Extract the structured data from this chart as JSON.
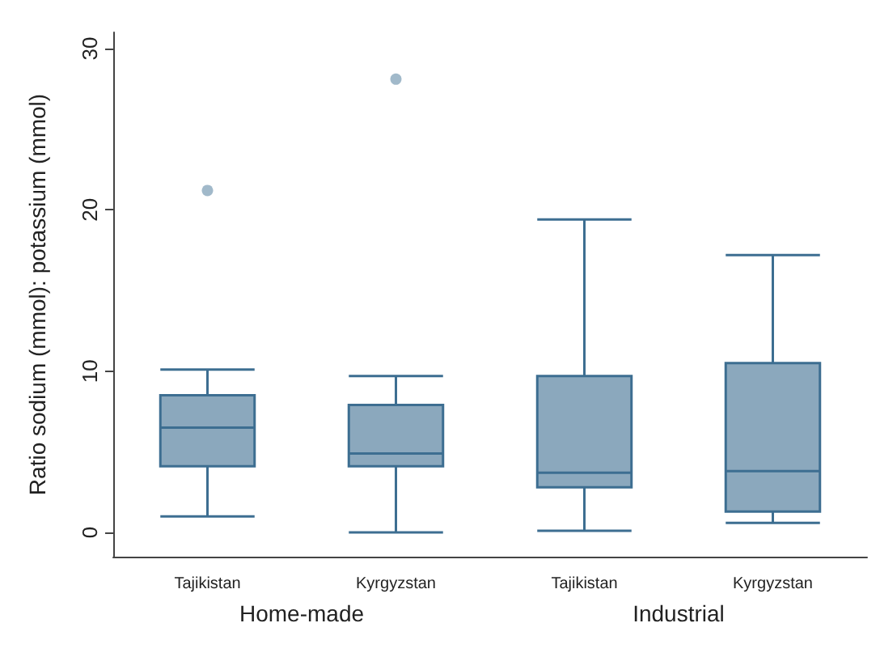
{
  "chart_data": {
    "type": "box",
    "ylabel": "Ratio sodium (mmol): potassium (mmol)",
    "categories": [
      "Tajikistan",
      "Kyrgyzstan",
      "Tajikistan",
      "Kyrgyzstan"
    ],
    "series": [
      {
        "color": "#3d6e91",
        "boxes": [
          {
            "low": 1.0,
            "q1": 4.1,
            "median": 6.5,
            "q3": 8.5,
            "high": 10.1,
            "outliers": [
              21.2
            ]
          },
          {
            "low": 0,
            "q1": 4.1,
            "median": 4.9,
            "q3": 7.9,
            "high": 9.7,
            "outliers": [
              28.1
            ]
          },
          {
            "low": 0.1,
            "q1": 2.8,
            "median": 3.7,
            "q3": 9.7,
            "high": 19.4
          },
          {
            "low": 0.6,
            "q1": 1.3,
            "median": 3.8,
            "q3": 10.5,
            "high": 17.2
          }
        ]
      }
    ],
    "annotations": [
      "Home-made",
      "Industrial"
    ],
    "ylim": [
      -1.5,
      31
    ],
    "yticks": [
      0,
      10,
      20,
      30
    ],
    "grid": false
  }
}
